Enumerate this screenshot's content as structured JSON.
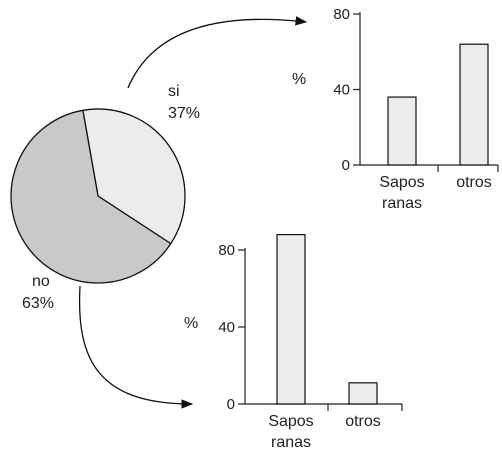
{
  "chart_data": [
    {
      "type": "pie",
      "slices": [
        {
          "label": "si",
          "percent_label": "37%",
          "value": 37,
          "color": "#ececec"
        },
        {
          "label": "no",
          "percent_label": "63%",
          "value": 63,
          "color": "#c9c9c9"
        }
      ]
    },
    {
      "type": "bar",
      "ylabel": "%",
      "ylim": [
        0,
        80
      ],
      "yticks": [
        "0",
        "40",
        "80"
      ],
      "categories": [
        "Sapos ranas",
        "otros"
      ],
      "category_lines": [
        [
          "Sapos",
          "ranas"
        ],
        [
          "otros"
        ]
      ],
      "values": [
        36,
        64
      ],
      "bar_color": "#ececec"
    },
    {
      "type": "bar",
      "ylabel": "%",
      "ylim": [
        0,
        80
      ],
      "yticks": [
        "0",
        "40",
        "80"
      ],
      "categories": [
        "Sapos ranas",
        "otros"
      ],
      "category_lines": [
        [
          "Sapos",
          "ranas"
        ],
        [
          "otros"
        ]
      ],
      "values": [
        88,
        11
      ],
      "bar_color": "#ececec"
    }
  ]
}
